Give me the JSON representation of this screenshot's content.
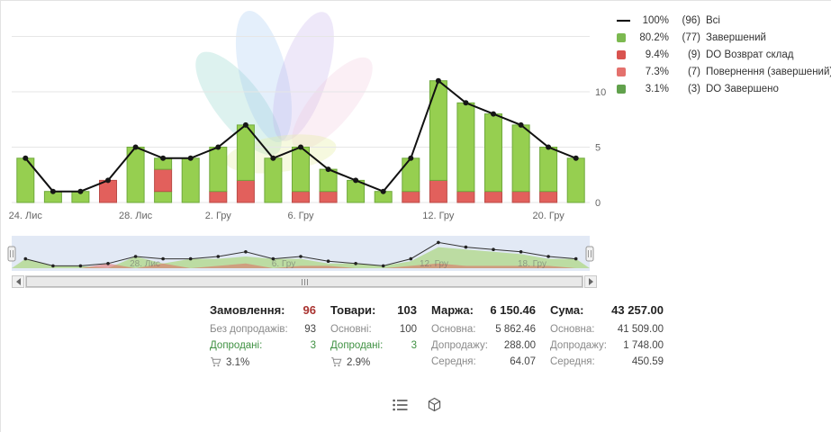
{
  "legend": {
    "items": [
      {
        "swatch": "line",
        "color": "#000000",
        "pct": "100%",
        "count": "(96)",
        "label": "Всі"
      },
      {
        "swatch": "square",
        "color": "#7cb950",
        "pct": "80.2%",
        "count": "(77)",
        "label": "Завершений"
      },
      {
        "swatch": "square",
        "color": "#d9534f",
        "pct": "9.4%",
        "count": "(9)",
        "label": "DO Возврат склад"
      },
      {
        "swatch": "square",
        "color": "#e4716d",
        "pct": "7.3%",
        "count": "(7)",
        "label": "Повернення (завершений)"
      },
      {
        "swatch": "square",
        "color": "#61a14c",
        "pct": "3.1%",
        "count": "(3)",
        "label": "DO Завершено"
      }
    ]
  },
  "chart_data": {
    "type": "bar",
    "stacked": true,
    "title": "",
    "x_axis": {
      "ticks": [
        {
          "i": 0,
          "label": "24. Лис"
        },
        {
          "i": 4,
          "label": "28. Лис"
        },
        {
          "i": 7,
          "label": "2. Гру"
        },
        {
          "i": 10,
          "label": "6. Гру"
        },
        {
          "i": 15,
          "label": "12. Гру"
        },
        {
          "i": 19,
          "label": "20. Гру"
        }
      ]
    },
    "y_axis": {
      "position": "right",
      "gridlines": [
        0,
        5,
        10,
        15
      ],
      "labels": [
        0,
        5,
        10
      ]
    },
    "series_colors": {
      "completed": {
        "fill": "#96cf50",
        "stroke": "#6fa93c",
        "name": "Завершений"
      },
      "returns": {
        "fill": "#e2605c",
        "stroke": "#bb4c49",
        "name": "Повернення / Возврат"
      }
    },
    "bars": [
      {
        "segments": [
          [
            "completed",
            4
          ]
        ]
      },
      {
        "segments": [
          [
            "completed",
            1
          ]
        ]
      },
      {
        "segments": [
          [
            "completed",
            1
          ]
        ]
      },
      {
        "segments": [
          [
            "returns",
            2
          ]
        ]
      },
      {
        "segments": [
          [
            "completed",
            5
          ]
        ]
      },
      {
        "segments": [
          [
            "completed",
            1
          ],
          [
            "returns",
            2
          ],
          [
            "completed",
            1
          ]
        ]
      },
      {
        "segments": [
          [
            "completed",
            4
          ]
        ]
      },
      {
        "segments": [
          [
            "returns",
            1
          ],
          [
            "completed",
            4
          ]
        ]
      },
      {
        "segments": [
          [
            "returns",
            2
          ],
          [
            "completed",
            5
          ]
        ]
      },
      {
        "segments": [
          [
            "completed",
            4
          ]
        ]
      },
      {
        "segments": [
          [
            "returns",
            1
          ],
          [
            "completed",
            4
          ]
        ]
      },
      {
        "segments": [
          [
            "returns",
            1
          ],
          [
            "completed",
            2
          ]
        ]
      },
      {
        "segments": [
          [
            "completed",
            2
          ]
        ]
      },
      {
        "segments": [
          [
            "completed",
            1
          ]
        ]
      },
      {
        "segments": [
          [
            "returns",
            1
          ],
          [
            "completed",
            3
          ]
        ]
      },
      {
        "segments": [
          [
            "returns",
            2
          ],
          [
            "completed",
            9
          ]
        ]
      },
      {
        "segments": [
          [
            "returns",
            1
          ],
          [
            "completed",
            8
          ]
        ]
      },
      {
        "segments": [
          [
            "returns",
            1
          ],
          [
            "completed",
            7
          ]
        ]
      },
      {
        "segments": [
          [
            "returns",
            1
          ],
          [
            "completed",
            6
          ]
        ]
      },
      {
        "segments": [
          [
            "returns",
            1
          ],
          [
            "completed",
            4
          ]
        ]
      },
      {
        "segments": [
          [
            "completed",
            4
          ]
        ]
      }
    ],
    "line_series": {
      "name": "Всі",
      "color": "#111111",
      "values": [
        4,
        1,
        1,
        2,
        5,
        4,
        4,
        5,
        7,
        4,
        5,
        3,
        2,
        1,
        4,
        11,
        9,
        8,
        7,
        5,
        4
      ]
    }
  },
  "navigator": {
    "labels": [
      {
        "f": 0.23,
        "label": "28. Лис"
      },
      {
        "f": 0.47,
        "label": "6. Гру"
      },
      {
        "f": 0.73,
        "label": "12. Гру"
      },
      {
        "f": 0.9,
        "label": "18. Гру"
      }
    ]
  },
  "stats": {
    "columns": [
      {
        "title": "Замовлення:",
        "value": "96",
        "rows": [
          {
            "label": "Без допродажів:",
            "value": "93"
          },
          {
            "label": "Допродані:",
            "value": "3"
          }
        ],
        "pct": "3.1%"
      },
      {
        "title": "Товари:",
        "value": "103",
        "rows": [
          {
            "label": "Основні:",
            "value": "100"
          },
          {
            "label": "Допродані:",
            "value": "3"
          }
        ],
        "pct": "2.9%"
      },
      {
        "title": "Маржа:",
        "value": "6 150.46",
        "rows": [
          {
            "label": "Основна:",
            "value": "5 862.46"
          },
          {
            "label": "Допродажу:",
            "value": "288.00"
          },
          {
            "label": "Середня:",
            "value": "64.07"
          }
        ]
      },
      {
        "title": "Сума:",
        "value": "43 257.00",
        "rows": [
          {
            "label": "Основна:",
            "value": "41 509.00"
          },
          {
            "label": "Допродажу:",
            "value": "1 748.00"
          },
          {
            "label": "Середня:",
            "value": "450.59"
          }
        ]
      }
    ]
  },
  "footer": {
    "icons": [
      "list-icon",
      "package-icon"
    ]
  }
}
